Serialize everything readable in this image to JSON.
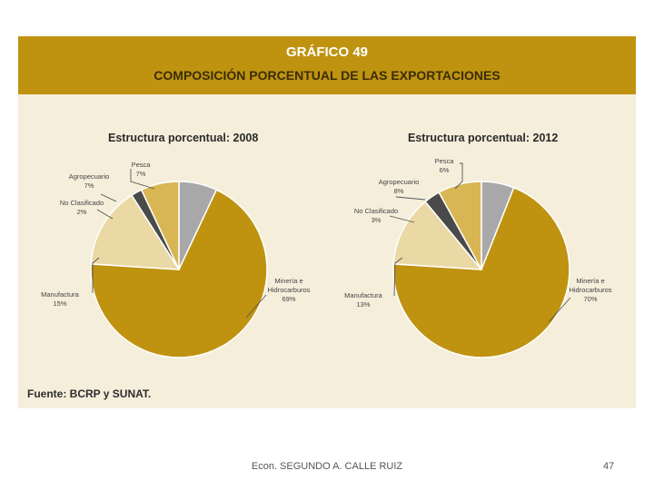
{
  "header": {
    "title": "GRÁFICO 49",
    "subtitle": "COMPOSICIÓN PORCENTUAL DE LAS EXPORTACIONES"
  },
  "source": "Fuente: BCRP y SUNAT.",
  "footer": {
    "author": "Econ. SEGUNDO A. CALLE RUIZ",
    "page": "47"
  },
  "colors": {
    "header_bg": "#bf9310",
    "panel_bg": "#f5eedb",
    "mineria": "#bf9310",
    "manufactura": "#ead9a4",
    "no_clasificado": "#4a4a4a",
    "agropecuario": "#d8b653",
    "pesca": "#a8a8a8"
  },
  "chart_data": [
    {
      "type": "pie",
      "title": "Estructura porcentual: 2008",
      "slices": [
        {
          "key": "pesca",
          "label": [
            "Pesca"
          ],
          "pct": "7%",
          "value": 7
        },
        {
          "key": "mineria",
          "label": [
            "Minería e",
            "Hidrocarburos"
          ],
          "pct": "69%",
          "value": 69
        },
        {
          "key": "manufactura",
          "label": [
            "Manufactura"
          ],
          "pct": "15%",
          "value": 15
        },
        {
          "key": "no_clasificado",
          "label": [
            "No Clasificado"
          ],
          "pct": "2%",
          "value": 2
        },
        {
          "key": "agropecuario",
          "label": [
            "Agropecuario"
          ],
          "pct": "7%",
          "value": 7
        }
      ]
    },
    {
      "type": "pie",
      "title": "Estructura porcentual: 2012",
      "slices": [
        {
          "key": "pesca",
          "label": [
            "Pesca"
          ],
          "pct": "6%",
          "value": 6
        },
        {
          "key": "mineria",
          "label": [
            "Minería e",
            "Hidrocarburos"
          ],
          "pct": "70%",
          "value": 70
        },
        {
          "key": "manufactura",
          "label": [
            "Manufactura"
          ],
          "pct": "13%",
          "value": 13
        },
        {
          "key": "no_clasificado",
          "label": [
            "No Clasificado"
          ],
          "pct": "3%",
          "value": 3
        },
        {
          "key": "agropecuario",
          "label": [
            "Agropecuario"
          ],
          "pct": "8%",
          "value": 8
        }
      ]
    }
  ]
}
